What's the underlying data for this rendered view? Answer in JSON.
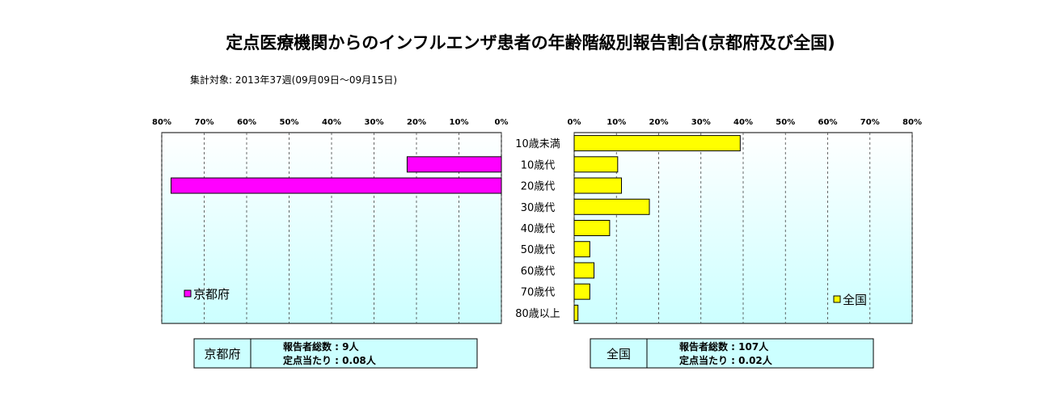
{
  "title": "定点医療機関からのインフルエンザ患者の年齢階級別報告割合(京都府及び全国)",
  "subtitle": "集計対象: 2013年37週(09月09日～09月15日)",
  "colors": {
    "kyoto": "#ff00ff",
    "national": "#ffff00",
    "bg_top": "#ffffff",
    "bg_bottom": "#ccffff",
    "infobox": "#ccffff"
  },
  "chart_data": [
    {
      "type": "bar",
      "orientation": "horizontal",
      "direction": "right-to-left",
      "categories": [
        "10歳未満",
        "10歳代",
        "20歳代",
        "30歳代",
        "40歳代",
        "50歳代",
        "60歳代",
        "70歳代",
        "80歳以上"
      ],
      "series": [
        {
          "name": "京都府",
          "values": [
            0,
            22.2,
            77.8,
            0,
            0,
            0,
            0,
            0,
            0
          ]
        }
      ],
      "xlim": [
        0,
        80
      ],
      "ticks": [
        "80%",
        "70%",
        "60%",
        "50%",
        "40%",
        "30%",
        "20%",
        "10%",
        "0%"
      ],
      "grid": true,
      "legend": "bottom-left"
    },
    {
      "type": "bar",
      "orientation": "horizontal",
      "direction": "left-to-right",
      "categories": [
        "10歳未満",
        "10歳代",
        "20歳代",
        "30歳代",
        "40歳代",
        "50歳代",
        "60歳代",
        "70歳代",
        "80歳以上"
      ],
      "series": [
        {
          "name": "全国",
          "values": [
            39.3,
            10.3,
            11.2,
            17.8,
            8.4,
            3.7,
            4.7,
            3.7,
            0.9
          ]
        }
      ],
      "xlim": [
        0,
        80
      ],
      "ticks": [
        "0%",
        "10%",
        "20%",
        "30%",
        "40%",
        "50%",
        "60%",
        "70%",
        "80%"
      ],
      "grid": true,
      "legend": "bottom-right"
    }
  ],
  "info_boxes": [
    {
      "label": "京都府",
      "line1": "報告者総数 : 9人",
      "line2": "定点当たり : 0.08人"
    },
    {
      "label": "全国",
      "line1": "報告者総数 : 107人",
      "line2": "定点当たり : 0.02人"
    }
  ]
}
